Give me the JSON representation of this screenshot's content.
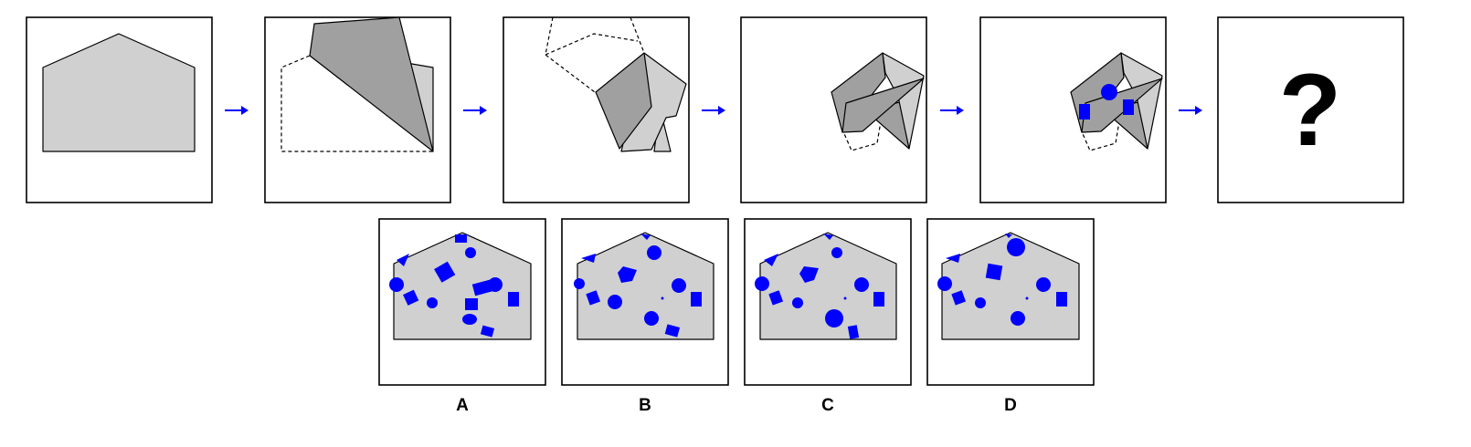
{
  "question_mark": "?",
  "options": [
    {
      "label": "A"
    },
    {
      "label": "B"
    },
    {
      "label": "C"
    },
    {
      "label": "D"
    }
  ],
  "colors": {
    "paper": "#d0d0d0",
    "fold": "#a0a0a0",
    "hole": "#0000ff",
    "arrow": "#0000ff"
  }
}
